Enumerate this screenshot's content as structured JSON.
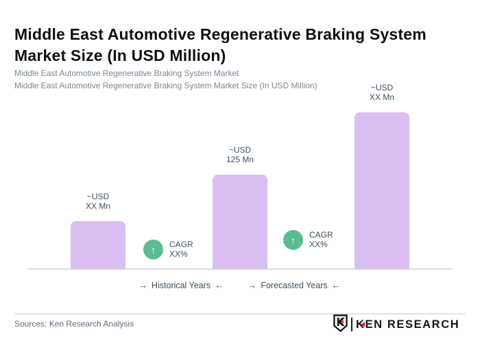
{
  "header": {
    "title": "Middle East Automotive Regenerative Braking System Market Size (In USD Million)",
    "subtitle_line1": "Middle East Automotive Regenerative Braking System Market",
    "subtitle_line2": "Middle East Automotive Regenerative Braking System Market Size (In USD Million)"
  },
  "chart_data": {
    "type": "bar",
    "title": "Middle East Automotive Regenerative Braking System Market Size (In USD Million)",
    "unit": "USD Million",
    "grid": false,
    "legend_position": "none",
    "bars": [
      {
        "label_line1": "~USD",
        "label_line2": "XX Mn",
        "value_estimate": 63
      },
      {
        "label_line1": "~USD",
        "label_line2": "125 Mn",
        "value_estimate": 125
      },
      {
        "label_line1": "~USD",
        "label_line2": "XX Mn",
        "value_estimate": 207
      }
    ],
    "known_value_note": "only middle bar labeled: 125 Mn; others shown as XX Mn (estimates read from bar heights)",
    "cagr_badges": [
      {
        "line1": "CAGR",
        "line2": "XX%",
        "arrow": "↑"
      },
      {
        "line1": "CAGR",
        "line2": "XX%",
        "arrow": "↑"
      }
    ],
    "x_axis_segments": [
      {
        "label": "Historical Years",
        "arrow_right": "→",
        "arrow_left": "←"
      },
      {
        "label": "Forecasted Years",
        "arrow_right": "→",
        "arrow_left": "←"
      }
    ],
    "ylim": [
      0,
      230
    ],
    "bar_color": "#d9bff1",
    "badge_color": "#59bd90",
    "label_color": "#3e4e5f"
  },
  "footer": {
    "sources": "Sources: Ken Research Analysis",
    "logo_text_k": "K",
    "logo_text_rest": "EN RESEARCH"
  }
}
